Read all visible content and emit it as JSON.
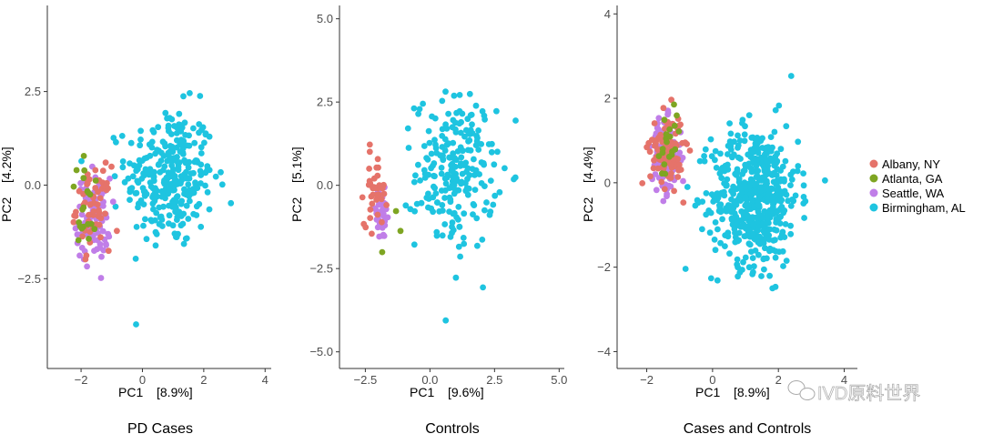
{
  "chart_data": [
    {
      "type": "scatter",
      "title": "PD Cases",
      "xlabel": "PC1",
      "xlabel_pct": "[8.9%]",
      "ylabel": "PC2",
      "ylabel_pct": "[4.2%]",
      "xlim": [
        -3.1,
        4.2
      ],
      "ylim": [
        -4.9,
        4.8
      ],
      "xticks": [
        -2,
        0,
        2,
        4
      ],
      "xtick_labels": [
        "−2",
        "0",
        "2",
        "4"
      ],
      "yticks": [
        -2.5,
        0,
        2.5
      ],
      "ytick_labels": [
        "−2.5",
        "0.0",
        "2.5"
      ],
      "clusters": [
        {
          "series": "Birmingham, AL",
          "count": 300,
          "cx": 0.9,
          "cy": 0.2,
          "sx": 1.3,
          "sy": 1.7
        },
        {
          "series": "Seattle, WA",
          "count": 90,
          "cx": -1.6,
          "cy": -0.9,
          "sx": 0.5,
          "sy": 1.0
        },
        {
          "series": "Albany, NY",
          "count": 60,
          "cx": -1.6,
          "cy": -0.6,
          "sx": 0.5,
          "sy": 1.0
        },
        {
          "series": "Atlanta, GA",
          "count": 20,
          "cx": -1.8,
          "cy": -0.5,
          "sx": 0.5,
          "sy": 1.1
        }
      ]
    },
    {
      "type": "scatter",
      "title": "Controls",
      "xlabel": "PC1",
      "xlabel_pct": "[9.6%]",
      "ylabel": "PC2",
      "ylabel_pct": "[5.1%]",
      "xlim": [
        -3.5,
        5.2
      ],
      "ylim": [
        -5.5,
        5.4
      ],
      "xticks": [
        -2.5,
        0,
        2.5,
        5
      ],
      "xtick_labels": [
        "−2.5",
        "0.0",
        "2.5",
        "5.0"
      ],
      "yticks": [
        -5,
        -2.5,
        0,
        2.5,
        5
      ],
      "ytick_labels": [
        "−5.0",
        "−2.5",
        "0.0",
        "2.5",
        "5.0"
      ],
      "clusters": [
        {
          "series": "Birmingham, AL",
          "count": 230,
          "cx": 1.0,
          "cy": 0.4,
          "sx": 1.4,
          "sy": 2.1
        },
        {
          "series": "Seattle, WA",
          "count": 40,
          "cx": -1.9,
          "cy": -0.9,
          "sx": 0.35,
          "sy": 0.7
        },
        {
          "series": "Albany, NY",
          "count": 40,
          "cx": -2.1,
          "cy": -0.1,
          "sx": 0.4,
          "sy": 1.0
        },
        {
          "series": "Atlanta, GA",
          "count": 3,
          "cx": -1.5,
          "cy": -1.4,
          "sx": 0.4,
          "sy": 0.5
        }
      ]
    },
    {
      "type": "scatter",
      "title": "Cases and Controls",
      "xlabel": "PC1",
      "xlabel_pct": "[8.9%]",
      "ylabel": "PC2",
      "ylabel_pct": "[4.4%]",
      "xlim": [
        -2.9,
        4.4
      ],
      "ylim": [
        -4.4,
        4.2
      ],
      "xticks": [
        -2,
        0,
        2,
        4
      ],
      "xtick_labels": [
        "−2",
        "0",
        "2",
        "4"
      ],
      "yticks": [
        -4,
        -2,
        0,
        2,
        4
      ],
      "ytick_labels": [
        "−4",
        "−2",
        "0",
        "2",
        "4"
      ],
      "clusters": [
        {
          "series": "Birmingham, AL",
          "count": 530,
          "cx": 1.3,
          "cy": -0.3,
          "sx": 1.2,
          "sy": 1.5
        },
        {
          "series": "Seattle, WA",
          "count": 130,
          "cx": -1.4,
          "cy": 0.6,
          "sx": 0.4,
          "sy": 0.8
        },
        {
          "series": "Albany, NY",
          "count": 100,
          "cx": -1.4,
          "cy": 0.8,
          "sx": 0.45,
          "sy": 0.8
        },
        {
          "series": "Atlanta, GA",
          "count": 20,
          "cx": -1.3,
          "cy": 0.8,
          "sx": 0.4,
          "sy": 0.8
        }
      ]
    }
  ],
  "legend": {
    "placement": "right",
    "items": [
      {
        "label": "Albany, NY",
        "color": "#e5736a"
      },
      {
        "label": "Atlanta, GA",
        "color": "#7ea522"
      },
      {
        "label": "Seattle, WA",
        "color": "#c07ee8"
      },
      {
        "label": "Birmingham, AL",
        "color": "#1ec4e0"
      }
    ]
  },
  "watermark": {
    "text": "IVD原料世界",
    "icon": "wechat-icon"
  }
}
